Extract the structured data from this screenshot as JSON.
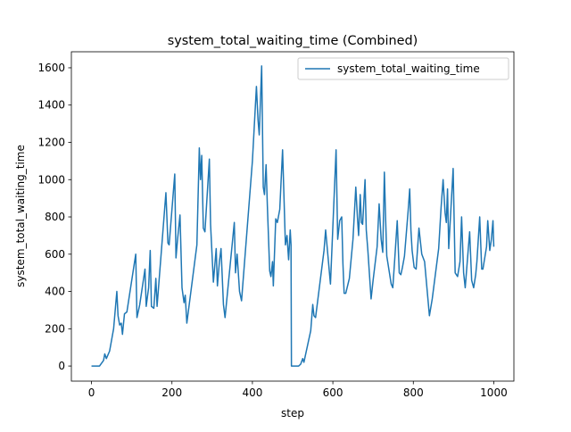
{
  "chart_data": {
    "type": "line",
    "title": "system_total_waiting_time (Combined)",
    "x_label": "step",
    "y_label": "system_total_waiting_time",
    "x": [
      0,
      20,
      30,
      33,
      37,
      45,
      55,
      63,
      66,
      70,
      74,
      77,
      82,
      88,
      110,
      113,
      120,
      133,
      136,
      142,
      146,
      149,
      155,
      160,
      163,
      185,
      190,
      193,
      207,
      210,
      214,
      220,
      225,
      230,
      233,
      237,
      262,
      268,
      271,
      274,
      278,
      282,
      293,
      296,
      303,
      310,
      313,
      318,
      322,
      328,
      332,
      355,
      358,
      362,
      368,
      373,
      400,
      410,
      414,
      417,
      423,
      427,
      430,
      434,
      437,
      443,
      446,
      450,
      452,
      458,
      462,
      468,
      475,
      482,
      486,
      490,
      494,
      496,
      497,
      515,
      520,
      525,
      528,
      545,
      550,
      553,
      557,
      578,
      582,
      594,
      608,
      612,
      617,
      622,
      625,
      628,
      632,
      641,
      650,
      657,
      661,
      664,
      668,
      671,
      674,
      680,
      683,
      687,
      695,
      700,
      710,
      715,
      720,
      724,
      728,
      731,
      734,
      745,
      749,
      754,
      760,
      765,
      769,
      773,
      778,
      787,
      791,
      794,
      797,
      802,
      807,
      814,
      821,
      828,
      840,
      847,
      863,
      869,
      874,
      879,
      882,
      885,
      888,
      899,
      904,
      910,
      916,
      920,
      925,
      929,
      937,
      940,
      945,
      950,
      955,
      958,
      965,
      970,
      973,
      982,
      985,
      990,
      994,
      998,
      1000
    ],
    "series": [
      {
        "name": "system_total_waiting_time",
        "color": "#1f77b4",
        "values": [
          0,
          0,
          30,
          65,
          40,
          80,
          200,
          400,
          270,
          220,
          230,
          170,
          280,
          290,
          600,
          260,
          330,
          520,
          320,
          420,
          620,
          320,
          310,
          470,
          320,
          930,
          660,
          650,
          1030,
          580,
          680,
          810,
          420,
          340,
          380,
          230,
          650,
          1170,
          1000,
          1130,
          740,
          720,
          1110,
          760,
          450,
          630,
          430,
          560,
          630,
          330,
          260,
          770,
          500,
          600,
          400,
          350,
          1100,
          1500,
          1320,
          1240,
          1610,
          960,
          920,
          1080,
          870,
          510,
          480,
          560,
          430,
          790,
          770,
          840,
          1160,
          650,
          700,
          570,
          730,
          650,
          0,
          0,
          10,
          40,
          20,
          190,
          330,
          270,
          260,
          620,
          730,
          440,
          1160,
          680,
          780,
          800,
          550,
          390,
          390,
          470,
          680,
          960,
          800,
          700,
          920,
          770,
          760,
          1000,
          730,
          620,
          360,
          460,
          640,
          870,
          680,
          610,
          1040,
          800,
          590,
          440,
          420,
          580,
          780,
          500,
          490,
          530,
          590,
          830,
          950,
          730,
          620,
          530,
          520,
          740,
          600,
          560,
          270,
          360,
          630,
          850,
          1000,
          820,
          770,
          950,
          630,
          1060,
          500,
          480,
          560,
          800,
          500,
          420,
          640,
          720,
          460,
          420,
          490,
          560,
          800,
          520,
          520,
          640,
          780,
          620,
          680,
          780,
          640
        ]
      }
    ],
    "xlim": [
      -50,
      1050
    ],
    "ylim": [
      -81,
      1686
    ],
    "xticks": [
      0,
      200,
      400,
      600,
      800,
      1000
    ],
    "yticks": [
      0,
      200,
      400,
      600,
      800,
      1000,
      1200,
      1400,
      1600
    ],
    "legend": "upper right"
  }
}
